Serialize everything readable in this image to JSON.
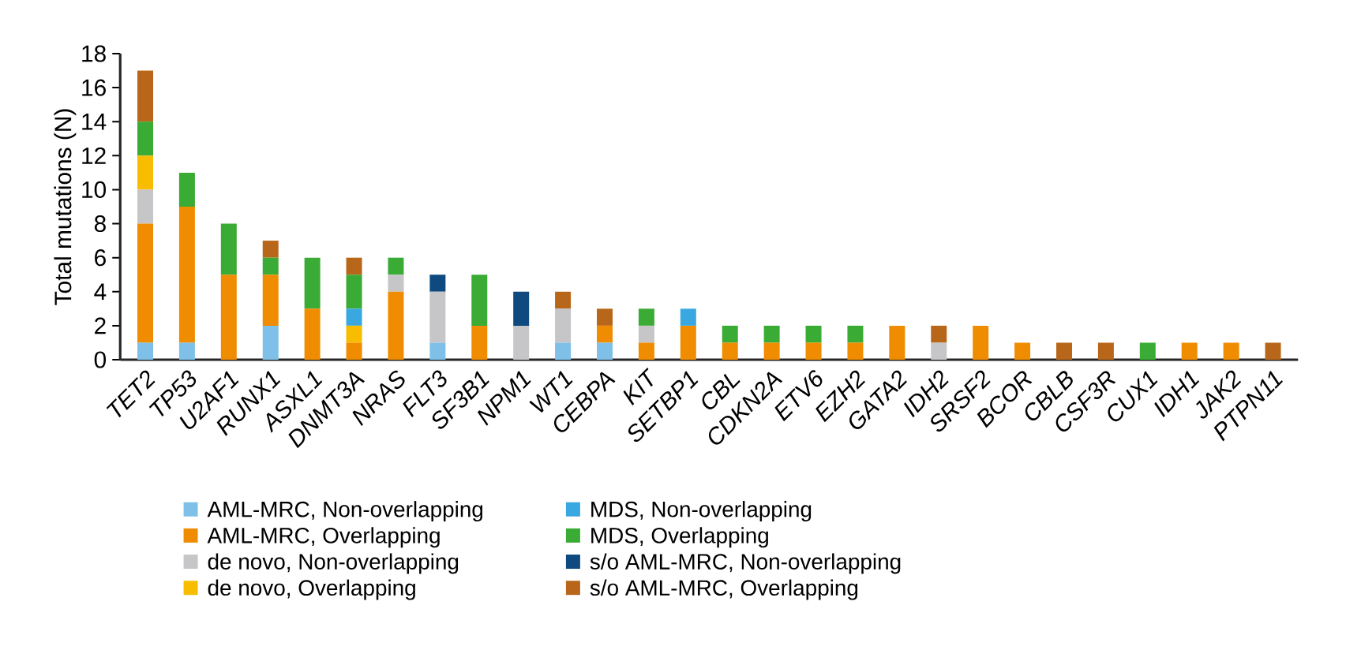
{
  "chart_data": {
    "type": "bar",
    "stacked": true,
    "ylabel": "Total mutations (N)",
    "categories": [
      "TET2",
      "TP53",
      "U2AF1",
      "RUNX1",
      "ASXL1",
      "DNMT3A",
      "NRAS",
      "FLT3",
      "SF3B1",
      "NPM1",
      "WT1",
      "CEBPA",
      "KIT",
      "SETBP1",
      "CBL",
      "CDKN2A",
      "ETV6",
      "EZH2",
      "GATA2",
      "IDH2",
      "SRSF2",
      "BCOR",
      "CBLB",
      "CSF3R",
      "CUX1",
      "IDH1",
      "JAK2",
      "PTPN11"
    ],
    "series": [
      {
        "name": "AML-MRC, Non-overlapping",
        "color": "#7fc0e8",
        "values": [
          1,
          1,
          0,
          2,
          0,
          0,
          0,
          1,
          0,
          0,
          1,
          1,
          0,
          0,
          0,
          0,
          0,
          0,
          0,
          0,
          0,
          0,
          0,
          0,
          0,
          0,
          0,
          0
        ]
      },
      {
        "name": "AML-MRC, Overlapping",
        "color": "#f08c00",
        "values": [
          7,
          8,
          5,
          3,
          3,
          1,
          4,
          0,
          2,
          0,
          0,
          1,
          1,
          2,
          1,
          1,
          1,
          1,
          2,
          0,
          2,
          1,
          0,
          0,
          0,
          1,
          1,
          0
        ]
      },
      {
        "name": "de novo, Non-overlapping",
        "color": "#c6c6c8",
        "values": [
          2,
          0,
          0,
          0,
          0,
          0,
          1,
          3,
          0,
          2,
          2,
          0,
          1,
          0,
          0,
          0,
          0,
          0,
          0,
          1,
          0,
          0,
          0,
          0,
          0,
          0,
          0,
          0
        ]
      },
      {
        "name": "de novo, Overlapping",
        "color": "#f8bd00",
        "values": [
          2,
          0,
          0,
          0,
          0,
          1,
          0,
          0,
          0,
          0,
          0,
          0,
          0,
          0,
          0,
          0,
          0,
          0,
          0,
          0,
          0,
          0,
          0,
          0,
          0,
          0,
          0,
          0
        ]
      },
      {
        "name": "MDS, Non-overlapping",
        "color": "#3aa8e0",
        "values": [
          0,
          0,
          0,
          0,
          0,
          1,
          0,
          0,
          0,
          0,
          0,
          0,
          0,
          1,
          0,
          0,
          0,
          0,
          0,
          0,
          0,
          0,
          0,
          0,
          0,
          0,
          0,
          0
        ]
      },
      {
        "name": "MDS, Overlapping",
        "color": "#3aab35",
        "values": [
          2,
          2,
          3,
          1,
          3,
          2,
          1,
          0,
          3,
          0,
          0,
          0,
          1,
          0,
          1,
          1,
          1,
          1,
          0,
          0,
          0,
          0,
          0,
          0,
          1,
          0,
          0,
          0
        ]
      },
      {
        "name": "s/o AML-MRC, Non-overlapping",
        "color": "#0e4a80",
        "values": [
          0,
          0,
          0,
          0,
          0,
          0,
          0,
          1,
          0,
          2,
          0,
          0,
          0,
          0,
          0,
          0,
          0,
          0,
          0,
          0,
          0,
          0,
          0,
          0,
          0,
          0,
          0,
          0
        ]
      },
      {
        "name": "s/o AML-MRC, Overlapping",
        "color": "#b8671a",
        "values": [
          3,
          0,
          0,
          1,
          0,
          1,
          0,
          0,
          0,
          0,
          1,
          1,
          0,
          0,
          0,
          0,
          0,
          0,
          0,
          1,
          0,
          0,
          1,
          1,
          0,
          0,
          0,
          1
        ]
      }
    ],
    "ylim": [
      0,
      18
    ],
    "yticks": [
      0,
      2,
      4,
      6,
      8,
      10,
      12,
      14,
      16,
      18
    ],
    "legend": "bottom",
    "grid": false
  }
}
